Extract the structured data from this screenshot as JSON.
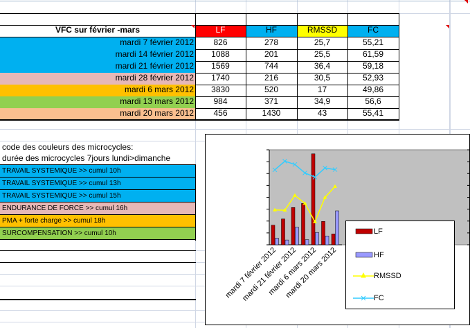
{
  "sheet": {
    "title": "VFC sur février -mars",
    "headers": {
      "lf": "LF",
      "hf": "HF",
      "rmssd": "RMSSD",
      "fc": "FC"
    },
    "header_colors": {
      "lf": "#ff0000",
      "hf": "#00b0f0",
      "rmssd": "#ffff00",
      "fc": "#00b0f0"
    },
    "rows": [
      {
        "date": "mardi 7 février 2012",
        "lf": "826",
        "hf": "278",
        "rmssd": "25,7",
        "fc": "55,21",
        "color": "#00b0f0"
      },
      {
        "date": "mardi 14 février 2012",
        "lf": "1088",
        "hf": "201",
        "rmssd": "25,5",
        "fc": "61,59",
        "color": "#00b0f0"
      },
      {
        "date": "mardi 21 février 2012",
        "lf": "1569",
        "hf": "744",
        "rmssd": "36,4",
        "fc": "59,18",
        "color": "#00b0f0"
      },
      {
        "date": "mardi 28 février 2012",
        "lf": "1740",
        "hf": "216",
        "rmssd": "30,5",
        "fc": "52,93",
        "color": "#e6b8b7"
      },
      {
        "date": "mardi 6 mars 2012",
        "lf": "3830",
        "hf": "520",
        "rmssd": "17",
        "fc": "49,86",
        "color": "#ffc000"
      },
      {
        "date": "mardi 13 mars 2012",
        "lf": "984",
        "hf": "371",
        "rmssd": "34,9",
        "fc": "56,6",
        "color": "#92d050"
      },
      {
        "date": "mardi 20 mars 2012",
        "lf": "456",
        "hf": "1430",
        "rmssd": "43",
        "fc": "55,41",
        "color": "#fabf8f"
      }
    ],
    "legend_title": "code des couleurs des microcycles:",
    "legend_subtitle": "durée des microcycles 7jours lundi>dimanche",
    "cycles": [
      {
        "label": "TRAVAIL SYSTEMIQUE    >>  cumul  10h",
        "color": "#00b0f0"
      },
      {
        "label": "TRAVAIL SYSTEMIQUE    >>  cumul  13h",
        "color": "#00b0f0"
      },
      {
        "label": "TRAVAIL SYSTEMIQUE    >>  cumul  15h",
        "color": "#00b0f0"
      },
      {
        "label": "ENDURANCE DE FORCE  >> cumul  16h",
        "color": "#e6b8b7"
      },
      {
        "label": "PMA  + forte charge       >>  cumul   18h",
        "color": "#ffc000"
      },
      {
        "label": "SURCOMPENSATION       >>  cumul  10h",
        "color": "#92d050"
      }
    ]
  },
  "chart_data": {
    "type": "bar",
    "categories": [
      "mardi 7 février 2012",
      "mardi 14 février 2012",
      "mardi 21 février 2012",
      "mardi 28 février 2012",
      "mardi 6 mars 2012",
      "mardi 13 mars 2012",
      "mardi 20 mars 2012"
    ],
    "tick_labels": [
      "mardi 7 février 2012",
      "mardi 21 février 2012",
      "mardi 6 mars 2012",
      "mardi 20 mars 2012"
    ],
    "series": [
      {
        "name": "LF",
        "kind": "bar",
        "color": "#c00000",
        "values": [
          826,
          1088,
          1569,
          1740,
          3830,
          984,
          456
        ]
      },
      {
        "name": "HF",
        "kind": "bar",
        "color": "#9999ff",
        "values": [
          278,
          201,
          744,
          216,
          520,
          371,
          1430
        ]
      },
      {
        "name": "RMSSD",
        "kind": "line",
        "color": "#ffff00",
        "values": [
          25.7,
          25.5,
          36.4,
          30.5,
          17,
          34.9,
          43
        ]
      },
      {
        "name": "FC",
        "kind": "line",
        "color": "#33ccff",
        "values": [
          55.21,
          61.59,
          59.18,
          52.93,
          49.86,
          56.6,
          55.41
        ]
      }
    ],
    "ylim_bars": [
      0,
      4000
    ],
    "ylim_lines": [
      0,
      70
    ],
    "plot_background": "#c0c0c0",
    "legend_position": "right"
  }
}
